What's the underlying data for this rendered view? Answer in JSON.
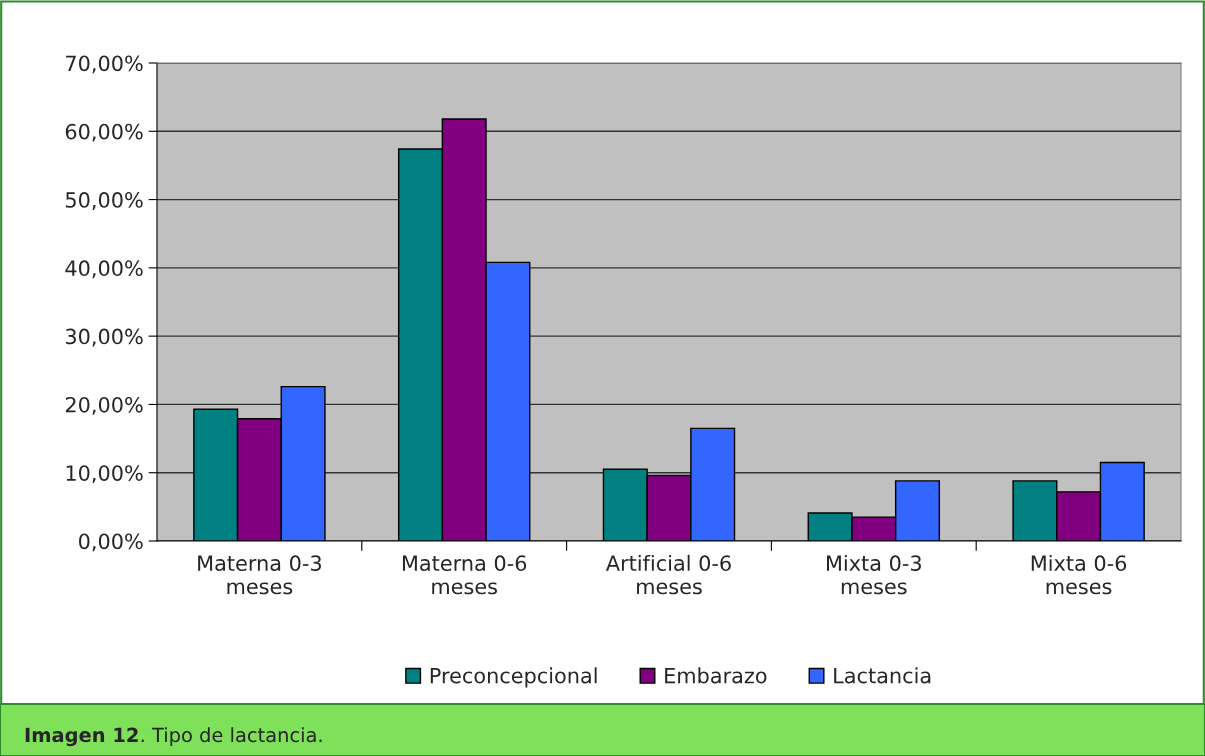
{
  "chart_data": {
    "type": "bar",
    "categories": [
      "Materna 0-3\nmeses",
      "Materna 0-6\nmeses",
      "Artificial 0-6\nmeses",
      "Mixta 0-3\nmeses",
      "Mixta 0-6\nmeses"
    ],
    "series": [
      {
        "name": "Preconcepcional",
        "color": "#008080",
        "values": [
          19.3,
          57.4,
          10.5,
          4.1,
          8.8
        ]
      },
      {
        "name": "Embarazo",
        "color": "#800080",
        "values": [
          17.9,
          61.8,
          9.6,
          3.5,
          7.2
        ]
      },
      {
        "name": "Lactancia",
        "color": "#3366ff",
        "values": [
          22.6,
          40.8,
          16.5,
          8.8,
          11.5
        ]
      }
    ],
    "ylim": [
      0,
      70
    ],
    "yticks": [
      {
        "value": 0,
        "label": "0,00%"
      },
      {
        "value": 10,
        "label": "10,00%"
      },
      {
        "value": 20,
        "label": "20,00%"
      },
      {
        "value": 30,
        "label": "30,00%"
      },
      {
        "value": 40,
        "label": "40,00%"
      },
      {
        "value": 50,
        "label": "50,00%"
      },
      {
        "value": 60,
        "label": "60,00%"
      },
      {
        "value": 70,
        "label": "70,00%"
      }
    ],
    "grid": "y",
    "legend": "bottom",
    "annotations": [
      "Imagen 12. Tipo de lactancia."
    ]
  }
}
